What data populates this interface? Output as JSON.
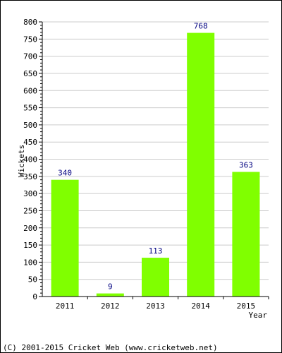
{
  "chart_data": {
    "type": "bar",
    "categories": [
      "2011",
      "2012",
      "2013",
      "2014",
      "2015"
    ],
    "values": [
      340,
      9,
      113,
      768,
      363
    ],
    "data_labels": [
      "340",
      "9",
      "113",
      "768",
      "363"
    ],
    "title": "",
    "xlabel": "Year",
    "ylabel": "Wickets",
    "ylim": [
      0,
      800
    ],
    "yticks": [
      0,
      50,
      100,
      150,
      200,
      250,
      300,
      350,
      400,
      450,
      500,
      550,
      600,
      650,
      700,
      750,
      800
    ],
    "grid": true,
    "legend": "none",
    "bar_color": "#80ff00",
    "label_color": "#000080",
    "grid_color": "#cccccc"
  },
  "footer": "(C) 2001-2015 Cricket Web (www.cricketweb.net)"
}
